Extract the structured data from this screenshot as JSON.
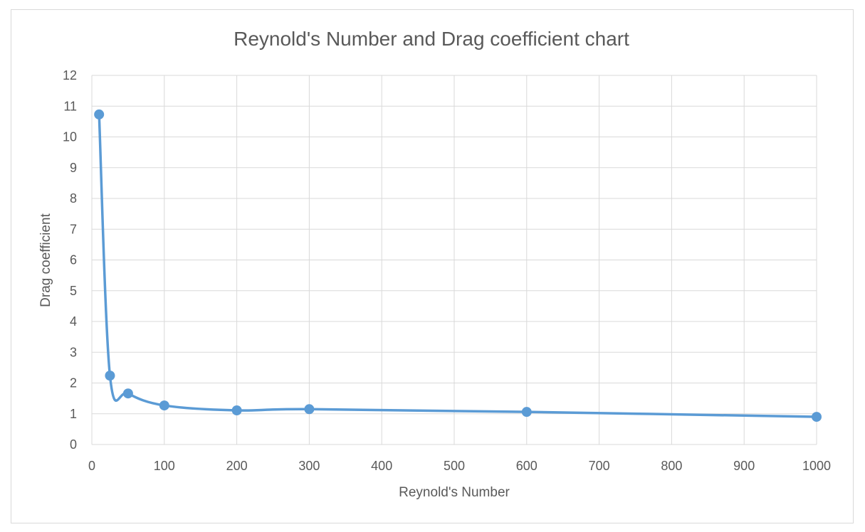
{
  "chart_data": {
    "type": "scatter",
    "title": "Reynold's Number and Drag coefficient chart",
    "xlabel": "Reynold's Number",
    "ylabel": "Drag coefficient",
    "xlim": [
      0,
      1000
    ],
    "ylim": [
      0,
      12
    ],
    "x_ticks": [
      "0",
      "100",
      "200",
      "300",
      "400",
      "500",
      "600",
      "700",
      "800",
      "900",
      "1000"
    ],
    "y_ticks": [
      "0",
      "1",
      "2",
      "3",
      "4",
      "5",
      "6",
      "7",
      "8",
      "9",
      "10",
      "11",
      "12"
    ],
    "grid": true,
    "smoothed_line": true,
    "series_color": "#5b9bd5",
    "series": [
      {
        "x": [
          10,
          25,
          50,
          100,
          200,
          300,
          600,
          1000
        ],
        "y": [
          10.73,
          2.24,
          1.66,
          1.27,
          1.11,
          1.15,
          1.06,
          0.9
        ]
      }
    ]
  }
}
